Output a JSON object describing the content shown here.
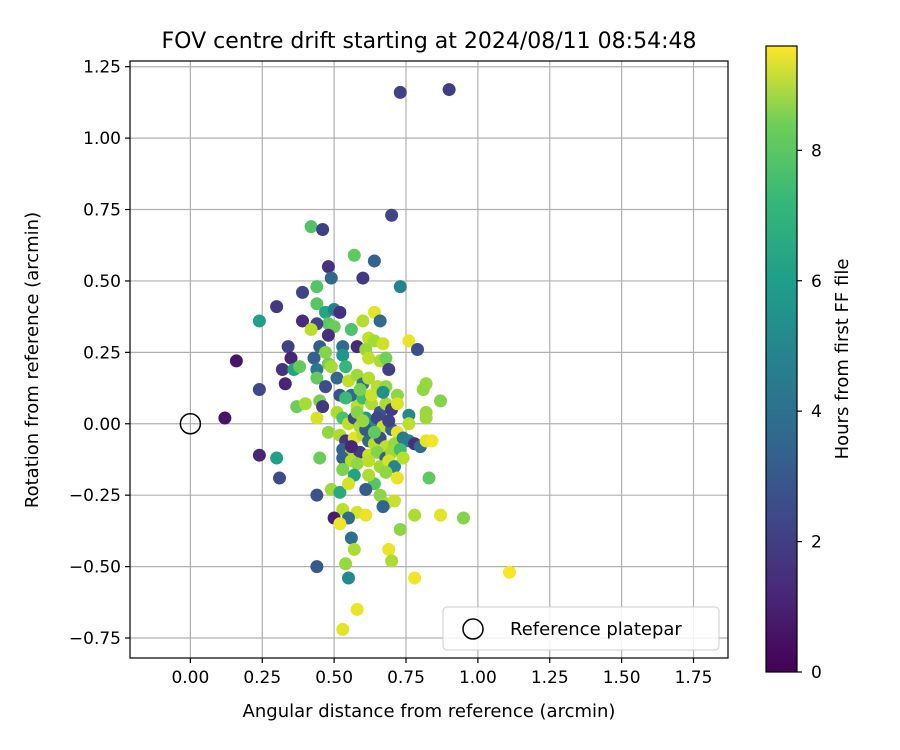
{
  "chart_data": {
    "type": "scatter",
    "title": "FOV centre drift starting at 2024/08/11 08:54:48",
    "xlabel": "Angular distance from reference (arcmin)",
    "ylabel": "Rotation from reference (arcmin)",
    "xlim": [
      -0.21,
      1.87
    ],
    "ylim": [
      -0.82,
      1.27
    ],
    "xticks": [
      "0.00",
      "0.25",
      "0.50",
      "0.75",
      "1.00",
      "1.25",
      "1.50",
      "1.75"
    ],
    "yticks": [
      "−0.75",
      "−0.50",
      "−0.25",
      "0.00",
      "0.25",
      "0.50",
      "0.75",
      "1.00",
      "1.25"
    ],
    "grid": true,
    "colormap": "viridis",
    "colorbar": {
      "label": "Hours from first FF file",
      "range": [
        0,
        9.6
      ],
      "ticks": [
        "0",
        "2",
        "4",
        "6",
        "8"
      ]
    },
    "legend": {
      "position": "lower-right",
      "entries": [
        "Reference platepar"
      ]
    },
    "reference_point": {
      "x": 0.0,
      "y": 0.0,
      "marker": "open-circle",
      "label": "Reference platepar"
    },
    "points": [
      {
        "x": 0.9,
        "y": 1.17,
        "c": 1.8
      },
      {
        "x": 0.73,
        "y": 1.16,
        "c": 1.9
      },
      {
        "x": 0.7,
        "y": 0.73,
        "c": 2.0
      },
      {
        "x": 0.42,
        "y": 0.69,
        "c": 6.9
      },
      {
        "x": 0.46,
        "y": 0.68,
        "c": 1.8
      },
      {
        "x": 0.57,
        "y": 0.59,
        "c": 7.2
      },
      {
        "x": 0.64,
        "y": 0.57,
        "c": 3.0
      },
      {
        "x": 0.48,
        "y": 0.55,
        "c": 1.4
      },
      {
        "x": 0.49,
        "y": 0.51,
        "c": 3.2
      },
      {
        "x": 0.6,
        "y": 0.51,
        "c": 1.6
      },
      {
        "x": 0.44,
        "y": 0.48,
        "c": 7.0
      },
      {
        "x": 0.73,
        "y": 0.48,
        "c": 4.3
      },
      {
        "x": 0.39,
        "y": 0.46,
        "c": 2.0
      },
      {
        "x": 0.3,
        "y": 0.41,
        "c": 1.6
      },
      {
        "x": 0.44,
        "y": 0.42,
        "c": 7.1
      },
      {
        "x": 0.47,
        "y": 0.39,
        "c": 5.6
      },
      {
        "x": 0.5,
        "y": 0.4,
        "c": 4.2
      },
      {
        "x": 0.52,
        "y": 0.39,
        "c": 1.4
      },
      {
        "x": 0.24,
        "y": 0.36,
        "c": 5.4
      },
      {
        "x": 0.39,
        "y": 0.36,
        "c": 1.2
      },
      {
        "x": 0.48,
        "y": 0.35,
        "c": 7.2
      },
      {
        "x": 0.44,
        "y": 0.35,
        "c": 2.0
      },
      {
        "x": 0.5,
        "y": 0.34,
        "c": 7.4
      },
      {
        "x": 0.42,
        "y": 0.33,
        "c": 8.6
      },
      {
        "x": 0.56,
        "y": 0.33,
        "c": 6.9
      },
      {
        "x": 0.64,
        "y": 0.39,
        "c": 9.2
      },
      {
        "x": 0.66,
        "y": 0.36,
        "c": 3.3
      },
      {
        "x": 0.6,
        "y": 0.36,
        "c": 8.5
      },
      {
        "x": 0.48,
        "y": 0.31,
        "c": 1.3
      },
      {
        "x": 0.62,
        "y": 0.3,
        "c": 8.7
      },
      {
        "x": 0.64,
        "y": 0.29,
        "c": 8.3
      },
      {
        "x": 0.67,
        "y": 0.28,
        "c": 8.9
      },
      {
        "x": 0.76,
        "y": 0.29,
        "c": 9.3
      },
      {
        "x": 0.34,
        "y": 0.27,
        "c": 1.9
      },
      {
        "x": 0.45,
        "y": 0.27,
        "c": 2.8
      },
      {
        "x": 0.53,
        "y": 0.27,
        "c": 3.4
      },
      {
        "x": 0.58,
        "y": 0.27,
        "c": 1.1
      },
      {
        "x": 0.61,
        "y": 0.26,
        "c": 8.1
      },
      {
        "x": 0.79,
        "y": 0.26,
        "c": 2.3
      },
      {
        "x": 0.16,
        "y": 0.22,
        "c": 0.6
      },
      {
        "x": 0.35,
        "y": 0.23,
        "c": 1.0
      },
      {
        "x": 0.43,
        "y": 0.23,
        "c": 2.9
      },
      {
        "x": 0.47,
        "y": 0.25,
        "c": 7.8
      },
      {
        "x": 0.53,
        "y": 0.24,
        "c": 5.0
      },
      {
        "x": 0.62,
        "y": 0.23,
        "c": 8.7
      },
      {
        "x": 0.66,
        "y": 0.22,
        "c": 8.4
      },
      {
        "x": 0.68,
        "y": 0.23,
        "c": 7.5
      },
      {
        "x": 0.32,
        "y": 0.19,
        "c": 1.5
      },
      {
        "x": 0.36,
        "y": 0.19,
        "c": 5.6
      },
      {
        "x": 0.38,
        "y": 0.2,
        "c": 7.3
      },
      {
        "x": 0.44,
        "y": 0.19,
        "c": 3.8
      },
      {
        "x": 0.48,
        "y": 0.21,
        "c": 7.6
      },
      {
        "x": 0.54,
        "y": 0.2,
        "c": 6.4
      },
      {
        "x": 0.69,
        "y": 0.19,
        "c": 1.8
      },
      {
        "x": 0.24,
        "y": 0.12,
        "c": 2.1
      },
      {
        "x": 0.33,
        "y": 0.14,
        "c": 1.0
      },
      {
        "x": 0.44,
        "y": 0.16,
        "c": 7.3
      },
      {
        "x": 0.51,
        "y": 0.16,
        "c": 3.2
      },
      {
        "x": 0.55,
        "y": 0.15,
        "c": 8.7
      },
      {
        "x": 0.58,
        "y": 0.17,
        "c": 8.2
      },
      {
        "x": 0.6,
        "y": 0.14,
        "c": 3.6
      },
      {
        "x": 0.62,
        "y": 0.16,
        "c": 8.5
      },
      {
        "x": 0.65,
        "y": 0.13,
        "c": 8.6
      },
      {
        "x": 0.68,
        "y": 0.13,
        "c": 8.0
      },
      {
        "x": 0.72,
        "y": 0.1,
        "c": 7.9
      },
      {
        "x": 0.82,
        "y": 0.14,
        "c": 8.1
      },
      {
        "x": 0.81,
        "y": 0.12,
        "c": 8.0
      },
      {
        "x": 0.37,
        "y": 0.06,
        "c": 7.4
      },
      {
        "x": 0.4,
        "y": 0.07,
        "c": 8.3
      },
      {
        "x": 0.45,
        "y": 0.08,
        "c": 7.6
      },
      {
        "x": 0.46,
        "y": 0.06,
        "c": 1.6
      },
      {
        "x": 0.52,
        "y": 0.1,
        "c": 2.5
      },
      {
        "x": 0.56,
        "y": 0.1,
        "c": 3.3
      },
      {
        "x": 0.58,
        "y": 0.06,
        "c": 8.6
      },
      {
        "x": 0.6,
        "y": 0.09,
        "c": 6.6
      },
      {
        "x": 0.63,
        "y": 0.07,
        "c": 8.4
      },
      {
        "x": 0.66,
        "y": 0.04,
        "c": 2.6
      },
      {
        "x": 0.68,
        "y": 0.07,
        "c": 8.4
      },
      {
        "x": 0.7,
        "y": 0.05,
        "c": 1.7
      },
      {
        "x": 0.72,
        "y": 0.07,
        "c": 9.1
      },
      {
        "x": 0.76,
        "y": 0.03,
        "c": 4.5
      },
      {
        "x": 0.82,
        "y": 0.04,
        "c": 8.1
      },
      {
        "x": 0.87,
        "y": 0.08,
        "c": 7.8
      },
      {
        "x": 0.12,
        "y": 0.02,
        "c": 0.5
      },
      {
        "x": 0.44,
        "y": 0.02,
        "c": 9.0
      },
      {
        "x": 0.51,
        "y": 0.04,
        "c": 8.4
      },
      {
        "x": 0.53,
        "y": 0.02,
        "c": 6.8
      },
      {
        "x": 0.55,
        "y": 0.0,
        "c": 8.7
      },
      {
        "x": 0.57,
        "y": 0.02,
        "c": 2.2
      },
      {
        "x": 0.59,
        "y": -0.01,
        "c": 8.3
      },
      {
        "x": 0.61,
        "y": 0.02,
        "c": 5.2
      },
      {
        "x": 0.63,
        "y": 0.0,
        "c": 4.6
      },
      {
        "x": 0.65,
        "y": 0.02,
        "c": 2.0
      },
      {
        "x": 0.67,
        "y": -0.01,
        "c": 8.8
      },
      {
        "x": 0.7,
        "y": -0.02,
        "c": 3.1
      },
      {
        "x": 0.72,
        "y": -0.03,
        "c": 9.3
      },
      {
        "x": 0.76,
        "y": 0.0,
        "c": 8.6
      },
      {
        "x": 0.82,
        "y": 0.02,
        "c": 8.2
      },
      {
        "x": 0.48,
        "y": -0.03,
        "c": 8.0
      },
      {
        "x": 0.52,
        "y": -0.04,
        "c": 8.4
      },
      {
        "x": 0.54,
        "y": -0.06,
        "c": 1.5
      },
      {
        "x": 0.57,
        "y": -0.05,
        "c": 9.2
      },
      {
        "x": 0.6,
        "y": -0.04,
        "c": 8.6
      },
      {
        "x": 0.62,
        "y": -0.06,
        "c": 3.3
      },
      {
        "x": 0.64,
        "y": -0.07,
        "c": 8.5
      },
      {
        "x": 0.66,
        "y": -0.05,
        "c": 2.3
      },
      {
        "x": 0.68,
        "y": -0.08,
        "c": 8.7
      },
      {
        "x": 0.71,
        "y": -0.07,
        "c": 8.1
      },
      {
        "x": 0.74,
        "y": -0.05,
        "c": 4.0
      },
      {
        "x": 0.76,
        "y": -0.06,
        "c": 4.1
      },
      {
        "x": 0.78,
        "y": -0.07,
        "c": 1.3
      },
      {
        "x": 0.8,
        "y": -0.08,
        "c": 3.4
      },
      {
        "x": 0.82,
        "y": -0.06,
        "c": 9.2
      },
      {
        "x": 0.84,
        "y": -0.06,
        "c": 9.4
      },
      {
        "x": 0.53,
        "y": -0.09,
        "c": 3.0
      },
      {
        "x": 0.56,
        "y": -0.1,
        "c": 8.3
      },
      {
        "x": 0.59,
        "y": -0.1,
        "c": 1.7
      },
      {
        "x": 0.62,
        "y": -0.11,
        "c": 8.8
      },
      {
        "x": 0.65,
        "y": -0.1,
        "c": 7.8
      },
      {
        "x": 0.68,
        "y": -0.12,
        "c": 2.9
      },
      {
        "x": 0.7,
        "y": -0.1,
        "c": 8.2
      },
      {
        "x": 0.73,
        "y": -0.09,
        "c": 6.7
      },
      {
        "x": 0.24,
        "y": -0.11,
        "c": 1.0
      },
      {
        "x": 0.3,
        "y": -0.12,
        "c": 5.4
      },
      {
        "x": 0.45,
        "y": -0.12,
        "c": 7.4
      },
      {
        "x": 0.53,
        "y": -0.12,
        "c": 3.0
      },
      {
        "x": 0.56,
        "y": -0.13,
        "c": 8.5
      },
      {
        "x": 0.58,
        "y": -0.14,
        "c": 8.0
      },
      {
        "x": 0.62,
        "y": -0.13,
        "c": 8.6
      },
      {
        "x": 0.66,
        "y": -0.15,
        "c": 8.2
      },
      {
        "x": 0.69,
        "y": -0.13,
        "c": 9.0
      },
      {
        "x": 0.71,
        "y": -0.15,
        "c": 4.4
      },
      {
        "x": 0.53,
        "y": -0.16,
        "c": 7.7
      },
      {
        "x": 0.57,
        "y": -0.18,
        "c": 5.6
      },
      {
        "x": 0.68,
        "y": -0.17,
        "c": 8.0
      },
      {
        "x": 0.72,
        "y": -0.19,
        "c": 9.3
      },
      {
        "x": 0.31,
        "y": -0.19,
        "c": 2.2
      },
      {
        "x": 0.83,
        "y": -0.19,
        "c": 7.2
      },
      {
        "x": 0.64,
        "y": -0.21,
        "c": 7.0
      },
      {
        "x": 0.61,
        "y": -0.23,
        "c": 2.8
      },
      {
        "x": 0.49,
        "y": -0.23,
        "c": 8.2
      },
      {
        "x": 0.52,
        "y": -0.24,
        "c": 5.8
      },
      {
        "x": 0.44,
        "y": -0.25,
        "c": 2.4
      },
      {
        "x": 0.66,
        "y": -0.25,
        "c": 7.9
      },
      {
        "x": 0.68,
        "y": -0.28,
        "c": 8.3
      },
      {
        "x": 0.71,
        "y": -0.27,
        "c": 8.8
      },
      {
        "x": 0.67,
        "y": -0.29,
        "c": 3.1
      },
      {
        "x": 0.53,
        "y": -0.3,
        "c": 8.6
      },
      {
        "x": 0.58,
        "y": -0.31,
        "c": 9.0
      },
      {
        "x": 0.61,
        "y": -0.32,
        "c": 9.3
      },
      {
        "x": 0.55,
        "y": -0.33,
        "c": 3.4
      },
      {
        "x": 0.5,
        "y": -0.33,
        "c": 0.8
      },
      {
        "x": 0.78,
        "y": -0.32,
        "c": 8.4
      },
      {
        "x": 0.87,
        "y": -0.32,
        "c": 9.2
      },
      {
        "x": 0.95,
        "y": -0.33,
        "c": 7.8
      },
      {
        "x": 0.52,
        "y": -0.35,
        "c": 9.4
      },
      {
        "x": 0.73,
        "y": -0.37,
        "c": 7.9
      },
      {
        "x": 0.56,
        "y": -0.4,
        "c": 3.5
      },
      {
        "x": 0.57,
        "y": -0.44,
        "c": 8.4
      },
      {
        "x": 0.69,
        "y": -0.44,
        "c": 9.3
      },
      {
        "x": 0.7,
        "y": -0.48,
        "c": 8.4
      },
      {
        "x": 0.54,
        "y": -0.49,
        "c": 8.1
      },
      {
        "x": 0.44,
        "y": -0.5,
        "c": 2.7
      },
      {
        "x": 1.11,
        "y": -0.52,
        "c": 9.5
      },
      {
        "x": 0.78,
        "y": -0.54,
        "c": 9.4
      },
      {
        "x": 0.55,
        "y": -0.54,
        "c": 4.6
      },
      {
        "x": 0.58,
        "y": -0.65,
        "c": 9.3
      },
      {
        "x": 0.53,
        "y": -0.72,
        "c": 9.2
      },
      {
        "x": 0.54,
        "y": 0.09,
        "c": 6.5
      },
      {
        "x": 0.58,
        "y": 0.04,
        "c": 7.8
      },
      {
        "x": 0.63,
        "y": 0.1,
        "c": 8.9
      },
      {
        "x": 0.61,
        "y": -0.02,
        "c": 2.6
      },
      {
        "x": 0.64,
        "y": -0.03,
        "c": 7.2
      },
      {
        "x": 0.69,
        "y": 0.01,
        "c": 1.9
      },
      {
        "x": 0.56,
        "y": -0.08,
        "c": 1.0
      },
      {
        "x": 0.74,
        "y": -0.12,
        "c": 8.6
      },
      {
        "x": 0.59,
        "y": 0.12,
        "c": 7.6
      },
      {
        "x": 0.55,
        "y": -0.21,
        "c": 9.0
      },
      {
        "x": 0.47,
        "y": 0.13,
        "c": 2.3
      },
      {
        "x": 0.49,
        "y": 0.2,
        "c": 8.3
      },
      {
        "x": 0.67,
        "y": 0.11,
        "c": 4.8
      },
      {
        "x": 0.62,
        "y": -0.18,
        "c": 8.4
      },
      {
        "x": 0.6,
        "y": 0.01,
        "c": 8.1
      }
    ]
  },
  "legend_label": "Reference platepar"
}
